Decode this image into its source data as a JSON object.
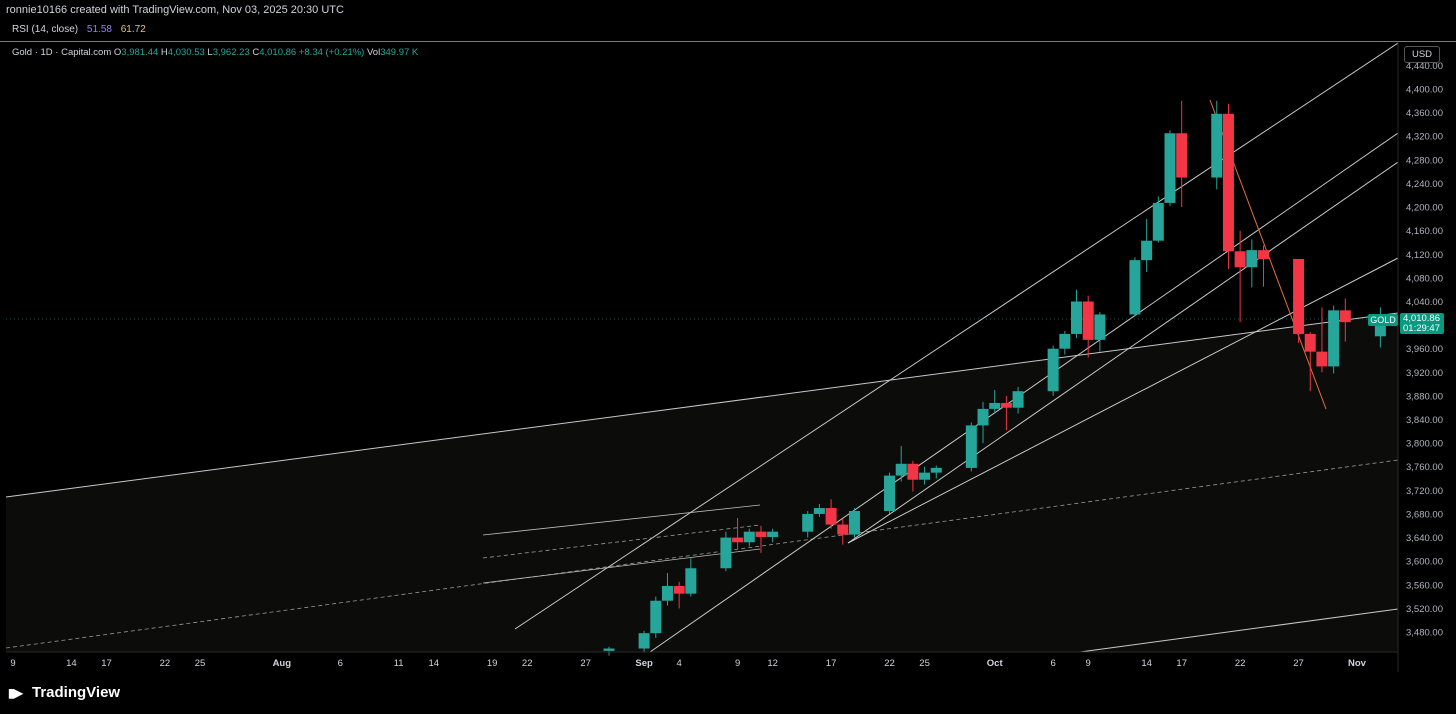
{
  "header": {
    "caption": "ronnie10166 created with TradingView.com, Nov 03, 2025 20:30 UTC"
  },
  "rsi": {
    "label": "RSI (14, close)",
    "value1": "51.58",
    "value2": "61.72"
  },
  "legend": {
    "symbol": "Gold · 1D · Capital.com",
    "o_label": "O",
    "o_value": "3,981.44",
    "h_label": "H",
    "h_value": "4,030.53",
    "l_label": "L",
    "l_value": "3,962.23",
    "c_label": "C",
    "c_value": "4,010.86",
    "change": "+8.34 (+0.21%)",
    "vol_label": "Vol",
    "vol_value": "349.97 K"
  },
  "currency": "USD",
  "price_tag": {
    "symbol": "GOLD",
    "price": "4,010.86",
    "countdown": "01:29:47"
  },
  "branding": {
    "name": "TradingView"
  },
  "colors": {
    "up": "#26a69a",
    "down": "#f23645",
    "line": "#b2b5be",
    "background": "#000000",
    "trend_orange": "#e0703a"
  },
  "chart_data": {
    "type": "candlestick",
    "title": "",
    "xlabel": "",
    "ylabel": "",
    "ylim": [
      3450,
      4460
    ],
    "y_ticks": [
      "4,440.00",
      "4,400.00",
      "4,360.00",
      "4,320.00",
      "4,280.00",
      "4,240.00",
      "4,200.00",
      "4,160.00",
      "4,120.00",
      "4,080.00",
      "4,040.00",
      "4,000.00",
      "3,960.00",
      "3,920.00",
      "3,880.00",
      "3,840.00",
      "3,800.00",
      "3,760.00",
      "3,720.00",
      "3,680.00",
      "3,640.00",
      "3,600.00",
      "3,560.00",
      "3,520.00",
      "3,480.00"
    ],
    "x_ticks": [
      {
        "date": "2025-07-09",
        "label": "9"
      },
      {
        "date": "2025-07-14",
        "label": "14"
      },
      {
        "date": "2025-07-17",
        "label": "17"
      },
      {
        "date": "2025-07-22",
        "label": "22"
      },
      {
        "date": "2025-07-25",
        "label": "25"
      },
      {
        "date": "2025-08-01",
        "label": "Aug"
      },
      {
        "date": "2025-08-06",
        "label": "6"
      },
      {
        "date": "2025-08-11",
        "label": "11"
      },
      {
        "date": "2025-08-14",
        "label": "14"
      },
      {
        "date": "2025-08-19",
        "label": "19"
      },
      {
        "date": "2025-08-22",
        "label": "22"
      },
      {
        "date": "2025-08-27",
        "label": "27"
      },
      {
        "date": "2025-09-01",
        "label": "Sep"
      },
      {
        "date": "2025-09-04",
        "label": "4"
      },
      {
        "date": "2025-09-09",
        "label": "9"
      },
      {
        "date": "2025-09-12",
        "label": "12"
      },
      {
        "date": "2025-09-17",
        "label": "17"
      },
      {
        "date": "2025-09-22",
        "label": "22"
      },
      {
        "date": "2025-09-25",
        "label": "25"
      },
      {
        "date": "2025-10-01",
        "label": "Oct"
      },
      {
        "date": "2025-10-06",
        "label": "6"
      },
      {
        "date": "2025-10-09",
        "label": "9"
      },
      {
        "date": "2025-10-14",
        "label": "14"
      },
      {
        "date": "2025-10-17",
        "label": "17"
      },
      {
        "date": "2025-10-22",
        "label": "22"
      },
      {
        "date": "2025-10-27",
        "label": "27"
      },
      {
        "date": "2025-11-01",
        "label": "Nov"
      }
    ],
    "candles": [
      {
        "date": "2025-08-29",
        "o": 3448,
        "h": 3455,
        "l": 3440,
        "c": 3452
      },
      {
        "date": "2025-09-01",
        "o": 3452,
        "h": 3482,
        "l": 3445,
        "c": 3478
      },
      {
        "date": "2025-09-02",
        "o": 3478,
        "h": 3540,
        "l": 3470,
        "c": 3533
      },
      {
        "date": "2025-09-03",
        "o": 3533,
        "h": 3580,
        "l": 3525,
        "c": 3558
      },
      {
        "date": "2025-09-04",
        "o": 3558,
        "h": 3565,
        "l": 3520,
        "c": 3545
      },
      {
        "date": "2025-09-05",
        "o": 3545,
        "h": 3605,
        "l": 3540,
        "c": 3588
      },
      {
        "date": "2025-09-08",
        "o": 3588,
        "h": 3650,
        "l": 3583,
        "c": 3640
      },
      {
        "date": "2025-09-09",
        "o": 3640,
        "h": 3673,
        "l": 3620,
        "c": 3632
      },
      {
        "date": "2025-09-10",
        "o": 3632,
        "h": 3655,
        "l": 3625,
        "c": 3650
      },
      {
        "date": "2025-09-11",
        "o": 3650,
        "h": 3660,
        "l": 3614,
        "c": 3641
      },
      {
        "date": "2025-09-12",
        "o": 3641,
        "h": 3655,
        "l": 3632,
        "c": 3650
      },
      {
        "date": "2025-09-15",
        "o": 3650,
        "h": 3685,
        "l": 3640,
        "c": 3680
      },
      {
        "date": "2025-09-16",
        "o": 3680,
        "h": 3697,
        "l": 3675,
        "c": 3690
      },
      {
        "date": "2025-09-17",
        "o": 3690,
        "h": 3705,
        "l": 3655,
        "c": 3662
      },
      {
        "date": "2025-09-18",
        "o": 3662,
        "h": 3672,
        "l": 3628,
        "c": 3645
      },
      {
        "date": "2025-09-19",
        "o": 3645,
        "h": 3690,
        "l": 3640,
        "c": 3685
      },
      {
        "date": "2025-09-22",
        "o": 3685,
        "h": 3750,
        "l": 3680,
        "c": 3745
      },
      {
        "date": "2025-09-23",
        "o": 3745,
        "h": 3795,
        "l": 3735,
        "c": 3765
      },
      {
        "date": "2025-09-24",
        "o": 3765,
        "h": 3770,
        "l": 3718,
        "c": 3738
      },
      {
        "date": "2025-09-25",
        "o": 3738,
        "h": 3760,
        "l": 3730,
        "c": 3750
      },
      {
        "date": "2025-09-26",
        "o": 3750,
        "h": 3762,
        "l": 3740,
        "c": 3758
      },
      {
        "date": "2025-09-29",
        "o": 3758,
        "h": 3835,
        "l": 3752,
        "c": 3830
      },
      {
        "date": "2025-09-30",
        "o": 3830,
        "h": 3870,
        "l": 3800,
        "c": 3858
      },
      {
        "date": "2025-10-01",
        "o": 3858,
        "h": 3890,
        "l": 3850,
        "c": 3868
      },
      {
        "date": "2025-10-02",
        "o": 3868,
        "h": 3880,
        "l": 3822,
        "c": 3860
      },
      {
        "date": "2025-10-03",
        "o": 3860,
        "h": 3895,
        "l": 3850,
        "c": 3888
      },
      {
        "date": "2025-10-06",
        "o": 3888,
        "h": 3965,
        "l": 3880,
        "c": 3960
      },
      {
        "date": "2025-10-07",
        "o": 3960,
        "h": 3990,
        "l": 3950,
        "c": 3985
      },
      {
        "date": "2025-10-08",
        "o": 3985,
        "h": 4060,
        "l": 3978,
        "c": 4040
      },
      {
        "date": "2025-10-09",
        "o": 4040,
        "h": 4050,
        "l": 3945,
        "c": 3975
      },
      {
        "date": "2025-10-10",
        "o": 3975,
        "h": 4022,
        "l": 3955,
        "c": 4018
      },
      {
        "date": "2025-10-13",
        "o": 4018,
        "h": 4115,
        "l": 4015,
        "c": 4110
      },
      {
        "date": "2025-10-14",
        "o": 4110,
        "h": 4180,
        "l": 4090,
        "c": 4143
      },
      {
        "date": "2025-10-15",
        "o": 4143,
        "h": 4218,
        "l": 4140,
        "c": 4207
      },
      {
        "date": "2025-10-16",
        "o": 4207,
        "h": 4330,
        "l": 4202,
        "c": 4325
      },
      {
        "date": "2025-10-17",
        "o": 4325,
        "h": 4380,
        "l": 4200,
        "c": 4250
      },
      {
        "date": "2025-10-20",
        "o": 4250,
        "h": 4380,
        "l": 4230,
        "c": 4358
      },
      {
        "date": "2025-10-21",
        "o": 4358,
        "h": 4375,
        "l": 4095,
        "c": 4125
      },
      {
        "date": "2025-10-22",
        "o": 4125,
        "h": 4160,
        "l": 4005,
        "c": 4098
      },
      {
        "date": "2025-10-23",
        "o": 4098,
        "h": 4145,
        "l": 4064,
        "c": 4127
      },
      {
        "date": "2025-10-24",
        "o": 4127,
        "h": 4135,
        "l": 4065,
        "c": 4112
      },
      {
        "date": "2025-10-27",
        "o": 4112,
        "h": 4112,
        "l": 3970,
        "c": 3985
      },
      {
        "date": "2025-10-28",
        "o": 3985,
        "h": 3988,
        "l": 3888,
        "c": 3955
      },
      {
        "date": "2025-10-29",
        "o": 3955,
        "h": 4030,
        "l": 3920,
        "c": 3930
      },
      {
        "date": "2025-10-30",
        "o": 3930,
        "h": 4033,
        "l": 3918,
        "c": 4025
      },
      {
        "date": "2025-10-31",
        "o": 4025,
        "h": 4045,
        "l": 3972,
        "c": 4005
      },
      {
        "date": "2025-11-03",
        "o": 3981,
        "h": 4030,
        "l": 3962,
        "c": 4010
      }
    ],
    "current_price": 4010.86,
    "grid": false,
    "legend_position": "top-left"
  }
}
